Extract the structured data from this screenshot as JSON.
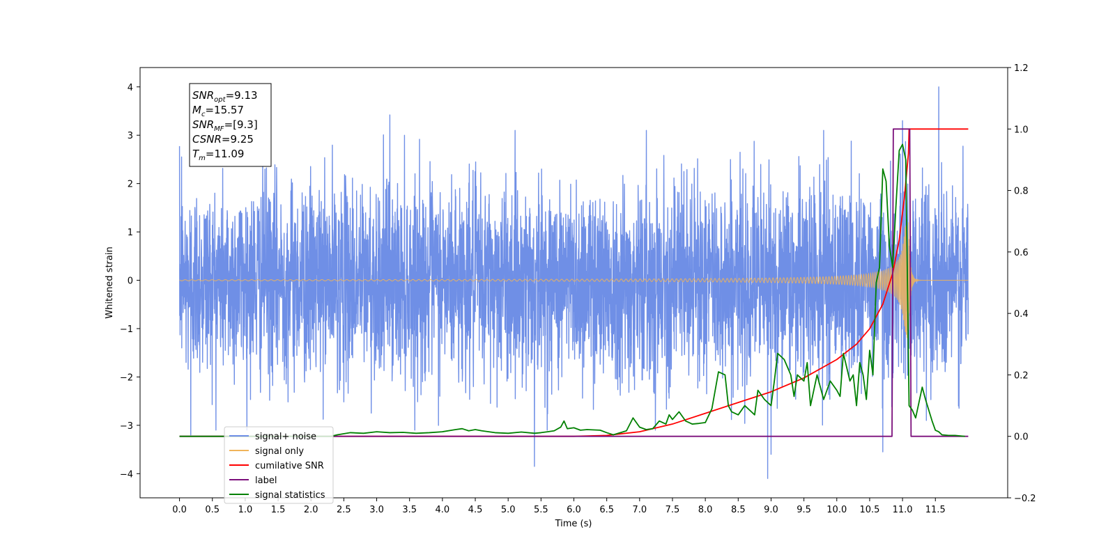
{
  "chart_data": {
    "type": "line",
    "xlabel": "Time (s)",
    "ylabel": "Whitened strain",
    "xlim": [
      -0.6,
      12.6
    ],
    "ylim": [
      -4.5,
      4.4
    ],
    "y2lim": [
      -0.2,
      1.2
    ],
    "x_ticks": [
      0.0,
      0.5,
      1.0,
      1.5,
      2.0,
      2.5,
      3.0,
      3.5,
      4.0,
      4.5,
      5.0,
      5.5,
      6.0,
      6.5,
      7.0,
      7.5,
      8.0,
      8.5,
      9.0,
      9.5,
      10.0,
      10.5,
      11.0,
      11.5
    ],
    "x_tick_labels": [
      "0.0",
      "0.5",
      "1.0",
      "1.5",
      "2.0",
      "2.5",
      "3.0",
      "3.5",
      "4.0",
      "4.5",
      "5.0",
      "5.5",
      "6.0",
      "6.5",
      "7.0",
      "7.5",
      "8.0",
      "8.5",
      "9.0",
      "9.5",
      "10.0",
      "10.5",
      "11.0",
      "11.5"
    ],
    "y_ticks": [
      4,
      3,
      2,
      1,
      0,
      -1,
      -2,
      -3,
      -4
    ],
    "y_tick_labels": [
      "4",
      "3",
      "2",
      "1",
      "0",
      "−1",
      "−2",
      "−3",
      "−4"
    ],
    "y2_ticks": [
      1.2,
      1.0,
      0.8,
      0.6,
      0.4,
      0.2,
      0.0,
      -0.2
    ],
    "y2_tick_labels": [
      "1.2",
      "1.0",
      "0.8",
      "0.6",
      "0.4",
      "0.2",
      "0.0",
      "−0.2"
    ],
    "grid": false,
    "legend_position": "bottom-left",
    "annotation": {
      "lines": [
        {
          "base": "SNR",
          "sub": "opt",
          "value": "=9.13"
        },
        {
          "base": "M",
          "sub": "c",
          "value": "=15.57"
        },
        {
          "base": "SNR",
          "sub": "MF",
          "value": "=[9.3]"
        },
        {
          "base": "CSNR",
          "sub": "",
          "value": "=9.25"
        },
        {
          "base": "T",
          "sub": "m",
          "value": "=11.09"
        }
      ]
    },
    "series": [
      {
        "name": "signal+ noise",
        "color": "#6f8fe6",
        "axis": "left",
        "style": "noise",
        "x_range": [
          0.0,
          12.0
        ],
        "sigma": 1.0,
        "spikes": [
          [
            0.17,
            -3.2
          ],
          [
            0.03,
            2.55
          ],
          [
            3.2,
            3.42
          ],
          [
            5.4,
            -3.85
          ],
          [
            8.95,
            -4.1
          ],
          [
            9.0,
            -3.6
          ],
          [
            10.7,
            -3.55
          ],
          [
            11.0,
            3.3
          ],
          [
            11.55,
            4.0
          ],
          [
            1.3,
            2.3
          ],
          [
            9.8,
            3.1
          ],
          [
            11.85,
            -2.6
          ]
        ]
      },
      {
        "name": "signal only",
        "color": "#f0b45a",
        "axis": "left",
        "style": "chirp",
        "x_range": [
          0.0,
          12.0
        ],
        "merger_time": 11.09
      },
      {
        "name": "cumilative SNR",
        "color": "#ff0000",
        "axis": "right",
        "x": [
          0.0,
          6.0,
          6.5,
          7.0,
          7.5,
          8.0,
          8.5,
          9.0,
          9.5,
          10.0,
          10.3,
          10.5,
          10.7,
          10.85,
          10.95,
          11.03,
          11.09,
          11.1,
          12.0
        ],
        "y": [
          0.0,
          0.0,
          0.003,
          0.015,
          0.04,
          0.075,
          0.11,
          0.145,
          0.19,
          0.25,
          0.3,
          0.35,
          0.43,
          0.53,
          0.64,
          0.78,
          0.92,
          1.0,
          1.0
        ]
      },
      {
        "name": "label",
        "color": "#7b0f7b",
        "axis": "right",
        "x": [
          0.0,
          10.84,
          10.86,
          11.11,
          11.13,
          12.0
        ],
        "y": [
          0.0,
          0.0,
          1.0,
          1.0,
          0.0,
          0.0
        ]
      },
      {
        "name": "signal statistics",
        "color": "#008000",
        "axis": "right",
        "x": [
          0.0,
          2.3,
          2.4,
          2.6,
          2.8,
          3.0,
          3.2,
          3.4,
          3.6,
          3.8,
          4.0,
          4.2,
          4.3,
          4.4,
          4.5,
          4.6,
          4.8,
          5.0,
          5.2,
          5.4,
          5.5,
          5.6,
          5.7,
          5.8,
          5.85,
          5.9,
          6.0,
          6.1,
          6.2,
          6.4,
          6.5,
          6.6,
          6.8,
          6.9,
          7.0,
          7.1,
          7.2,
          7.3,
          7.4,
          7.45,
          7.5,
          7.6,
          7.7,
          7.75,
          7.8,
          7.9,
          8.0,
          8.1,
          8.2,
          8.3,
          8.35,
          8.4,
          8.5,
          8.6,
          8.7,
          8.75,
          8.8,
          8.9,
          9.0,
          9.05,
          9.1,
          9.2,
          9.3,
          9.35,
          9.4,
          9.5,
          9.55,
          9.6,
          9.7,
          9.8,
          9.9,
          10.0,
          10.05,
          10.1,
          10.2,
          10.25,
          10.3,
          10.35,
          10.4,
          10.45,
          10.5,
          10.55,
          10.6,
          10.65,
          10.7,
          10.75,
          10.8,
          10.85,
          10.9,
          10.95,
          11.0,
          11.05,
          11.1,
          11.15,
          11.2,
          11.3,
          11.35,
          11.45,
          11.5,
          11.55,
          11.6,
          11.7,
          11.8,
          11.95
        ],
        "y": [
          0.0,
          0.0,
          0.005,
          0.012,
          0.01,
          0.015,
          0.012,
          0.013,
          0.01,
          0.012,
          0.015,
          0.022,
          0.025,
          0.018,
          0.022,
          0.018,
          0.012,
          0.01,
          0.014,
          0.01,
          0.012,
          0.015,
          0.018,
          0.03,
          0.05,
          0.025,
          0.028,
          0.02,
          0.022,
          0.02,
          0.012,
          0.005,
          0.018,
          0.06,
          0.03,
          0.022,
          0.025,
          0.05,
          0.04,
          0.07,
          0.055,
          0.08,
          0.05,
          0.045,
          0.04,
          0.042,
          0.045,
          0.09,
          0.21,
          0.2,
          0.1,
          0.08,
          0.07,
          0.1,
          0.08,
          0.07,
          0.15,
          0.12,
          0.1,
          0.18,
          0.27,
          0.25,
          0.2,
          0.13,
          0.2,
          0.18,
          0.24,
          0.1,
          0.2,
          0.12,
          0.18,
          0.15,
          0.13,
          0.27,
          0.18,
          0.2,
          0.1,
          0.24,
          0.2,
          0.12,
          0.28,
          0.2,
          0.5,
          0.55,
          0.87,
          0.83,
          0.62,
          0.55,
          0.75,
          0.93,
          0.95,
          0.9,
          0.1,
          0.085,
          0.06,
          0.16,
          0.12,
          0.05,
          0.02,
          0.015,
          0.005,
          0.003,
          0.003,
          0.0
        ]
      }
    ]
  }
}
